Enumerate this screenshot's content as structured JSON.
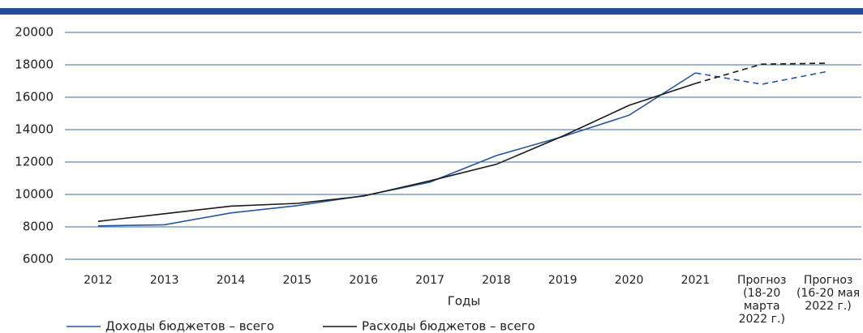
{
  "chart_data": {
    "type": "line",
    "x_label": "Годы",
    "categories": [
      "2012",
      "2013",
      "2014",
      "2015",
      "2016",
      "2017",
      "2018",
      "2019",
      "2020",
      "2021",
      "Прогноз\n(18-20 марта\n2022 г.)",
      "Прогноз\n(16-20 мая\n2022 г.)"
    ],
    "series": [
      {
        "name": "Доходы бюджетов – всего",
        "color": "#2756a0",
        "dash_from": 9,
        "values": [
          8060,
          8130,
          8860,
          9310,
          9920,
          10760,
          12400,
          13570,
          14890,
          17500,
          16800,
          17600
        ]
      },
      {
        "name": "Расходы бюджетов – всего",
        "color": "#1a1a1a",
        "dash_from": 9,
        "values": [
          8340,
          8810,
          9280,
          9450,
          9900,
          10840,
          11860,
          13600,
          15500,
          16850,
          18040,
          18100
        ]
      }
    ],
    "ylim": [
      6000,
      20000
    ],
    "yticks": [
      6000,
      8000,
      10000,
      12000,
      14000,
      16000,
      18000,
      20000
    ],
    "grid": true,
    "legend": "bottom"
  }
}
